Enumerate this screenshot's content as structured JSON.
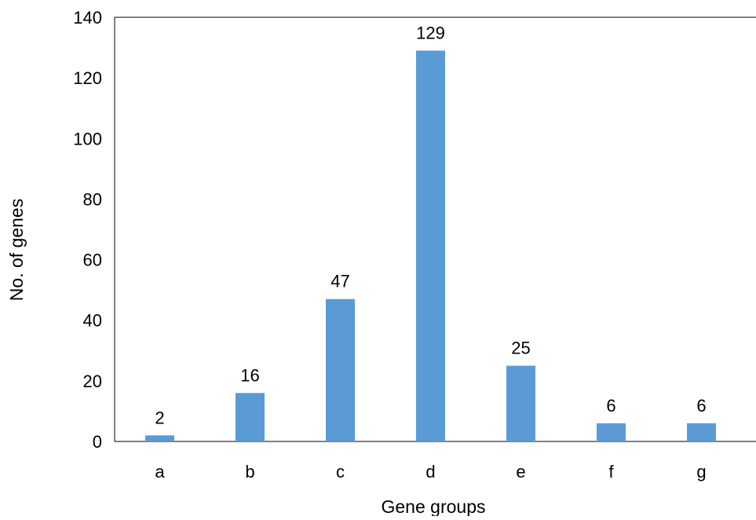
{
  "chart_data": {
    "type": "bar",
    "categories": [
      "a",
      "b",
      "c",
      "d",
      "e",
      "f",
      "g"
    ],
    "values": [
      2,
      16,
      47,
      129,
      25,
      6,
      6
    ],
    "data_labels": [
      "2",
      "16",
      "47",
      "129",
      "25",
      "6",
      "6"
    ],
    "title": "",
    "xlabel": "Gene groups",
    "ylabel": "No. of genes",
    "ylim": [
      0,
      140
    ],
    "yticks": [
      0,
      20,
      40,
      60,
      80,
      100,
      120,
      140
    ],
    "ytick_labels": [
      "0",
      "20",
      "40",
      "60",
      "80",
      "100",
      "120",
      "140"
    ],
    "grid": false,
    "legend": "none",
    "colors": {
      "bar": "#5b9bd5",
      "axis": "#000000",
      "frame": "#000000"
    }
  }
}
